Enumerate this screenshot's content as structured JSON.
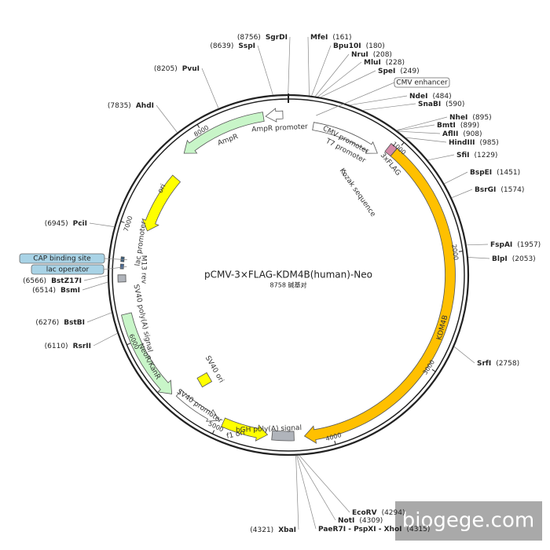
{
  "title": "pCMV-3×FLAG-KDM4B(human)-Neo",
  "length": "8758 碱基对",
  "sites": [
    {
      "name": "SgrDI",
      "position": "(8756)"
    },
    {
      "name": "SspI",
      "position": "(8639)"
    },
    {
      "name": "PvuI",
      "position": "(8205)"
    },
    {
      "name": "AhdI",
      "position": "(7835)"
    },
    {
      "name": "PciI",
      "position": "(6945)"
    },
    {
      "name": "BstZ17I",
      "position": "(6566)"
    },
    {
      "name": "BsmI",
      "position": "(6514)"
    },
    {
      "name": "BstBI",
      "position": "(6276)"
    },
    {
      "name": "RsrII",
      "position": "(6110)"
    },
    {
      "name": "XbaI",
      "position": "(4321)"
    },
    {
      "name": "MfeI",
      "position": "(161)"
    },
    {
      "name": "Bpu10I",
      "position": "(180)"
    },
    {
      "name": "NruI",
      "position": "(208)"
    },
    {
      "name": "MluI",
      "position": "(228)"
    },
    {
      "name": "SpeI",
      "position": "(249)"
    },
    {
      "name": "NdeI",
      "position": "(484)"
    },
    {
      "name": "SnaBI",
      "position": "(590)"
    },
    {
      "name": "NheI",
      "position": "(895)"
    },
    {
      "name": "BmtI",
      "position": "(899)"
    },
    {
      "name": "AflII",
      "position": "(908)"
    },
    {
      "name": "HindIII",
      "position": "(985)"
    },
    {
      "name": "SfiI",
      "position": "(1229)"
    },
    {
      "name": "BspEI",
      "position": "(1451)"
    },
    {
      "name": "BsrGI",
      "position": "(1574)"
    },
    {
      "name": "FspAI",
      "position": "(1957)"
    },
    {
      "name": "BlpI",
      "position": "(2053)"
    },
    {
      "name": "SrfI",
      "position": "(2758)"
    },
    {
      "name": "EcoRV",
      "position": "(4294)"
    },
    {
      "name": "NotI",
      "position": "(4309)"
    },
    {
      "name": "PaeR7I - PspXI - XhoI",
      "position": "(4315)"
    }
  ],
  "boxed_features": [
    "CMV enhancer",
    "CAP binding site",
    "lac operator"
  ],
  "features": [
    "AmpR promoter",
    "AmpR",
    "ori",
    "lac promoter",
    "M13 rev",
    "SV40 poly(A) signal",
    "NeoR/KanR",
    "SV40 ori",
    "SV40 promoter",
    "f1 ori",
    "bGH poly(A) signal",
    "KDM4B",
    "3xFLAG",
    "CMV promoter",
    "T7 promoter",
    "Kozak sequence"
  ],
  "ruler": [
    "1000",
    "2000",
    "3000",
    "4000",
    "5000",
    "6000",
    "7000",
    "8000"
  ],
  "watermark": "biogege.com"
}
